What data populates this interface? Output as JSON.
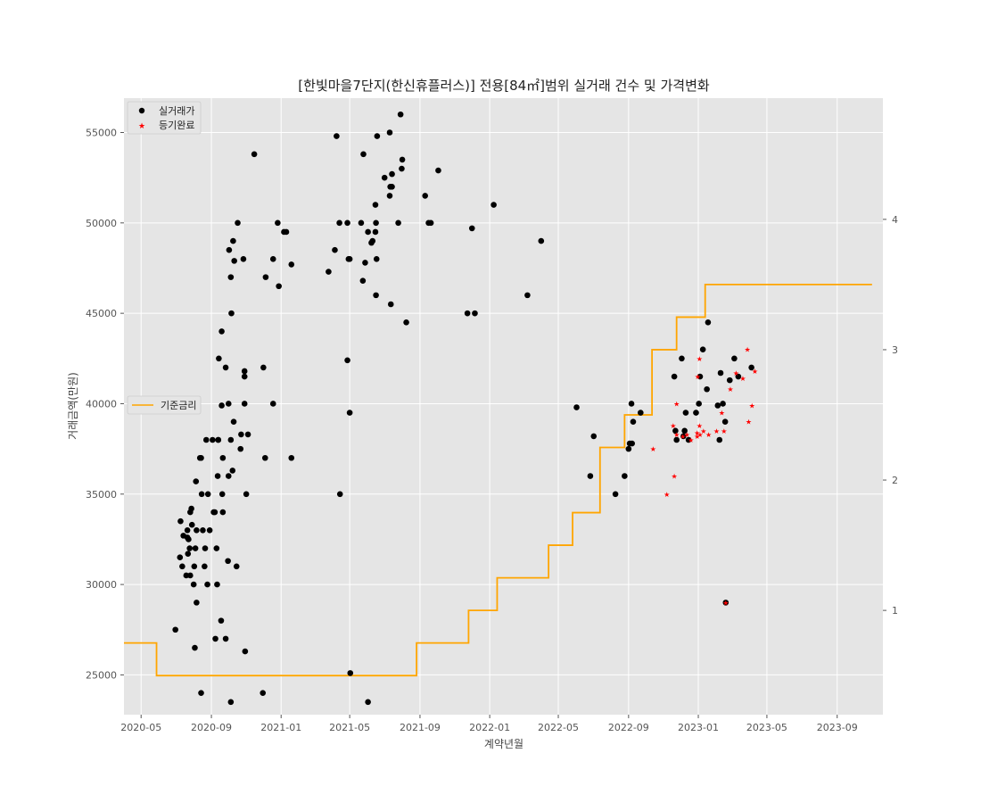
{
  "chart_data": {
    "type": "scatter",
    "title": "[한빛마을7단지(한신휴플러스)] 전용[84㎡]범위 실거래 건수 및 가격변화",
    "xlabel": "계약년월",
    "ylabel": "거래금액(만원)",
    "x_ticks": [
      "2020-05",
      "2020-09",
      "2021-01",
      "2021-05",
      "2021-09",
      "2022-01",
      "2022-05",
      "2022-09",
      "2023-01",
      "2023-05",
      "2023-09"
    ],
    "y_ticks": [
      25000,
      30000,
      35000,
      40000,
      45000,
      50000,
      55000
    ],
    "y2_ticks": [
      1,
      2,
      3,
      4
    ],
    "xlim": [
      "2020-04-01",
      "2023-11-20"
    ],
    "ylim": [
      22800,
      56900
    ],
    "y2lim": [
      0.2,
      4.93
    ],
    "grid": true,
    "colors": {
      "background": "#e5e5e5",
      "trades": "#000000",
      "registered": "#ff0000",
      "rate": "#ffa500",
      "grid": "#ffffff"
    },
    "legend_top": {
      "position": "top-left",
      "items": [
        {
          "label": "실거래가",
          "marker": "circle"
        },
        {
          "label": "등기완료",
          "marker": "star"
        }
      ]
    },
    "legend_mid": {
      "position": "middle-left",
      "items": [
        {
          "label": "기준금리",
          "marker": "line"
        }
      ]
    },
    "series": [
      {
        "name": "실거래가",
        "marker": "circle",
        "points": [
          [
            "2020-06-30",
            27500
          ],
          [
            "2020-07-09",
            33500
          ],
          [
            "2020-07-08",
            31500
          ],
          [
            "2020-07-14",
            32700
          ],
          [
            "2020-07-12",
            31000
          ],
          [
            "2020-07-21",
            32600
          ],
          [
            "2020-07-19",
            30500
          ],
          [
            "2020-07-21",
            33000
          ],
          [
            "2020-07-22",
            31700
          ],
          [
            "2020-07-23",
            32500
          ],
          [
            "2020-07-26",
            30500
          ],
          [
            "2020-07-25",
            32000
          ],
          [
            "2020-07-26",
            34000
          ],
          [
            "2020-07-28",
            34200
          ],
          [
            "2020-07-29",
            33300
          ],
          [
            "2020-08-01",
            30000
          ],
          [
            "2020-08-02",
            31000
          ],
          [
            "2020-08-03",
            26500
          ],
          [
            "2020-08-04",
            32000
          ],
          [
            "2020-08-05",
            35700
          ],
          [
            "2020-08-06",
            33000
          ],
          [
            "2020-08-06",
            29000
          ],
          [
            "2020-08-12",
            37000
          ],
          [
            "2020-08-14",
            37000
          ],
          [
            "2020-08-14",
            24000
          ],
          [
            "2020-08-15",
            35000
          ],
          [
            "2020-08-17",
            33000
          ],
          [
            "2020-08-20",
            31000
          ],
          [
            "2020-08-21",
            32000
          ],
          [
            "2020-08-23",
            38000
          ],
          [
            "2020-08-25",
            30000
          ],
          [
            "2020-08-26",
            35000
          ],
          [
            "2020-08-29",
            33000
          ],
          [
            "2020-09-03",
            38000
          ],
          [
            "2020-09-05",
            34000
          ],
          [
            "2020-09-07",
            34000
          ],
          [
            "2020-09-08",
            27000
          ],
          [
            "2020-09-10",
            32000
          ],
          [
            "2020-09-11",
            30000
          ],
          [
            "2020-09-12",
            36000
          ],
          [
            "2020-09-13",
            38000
          ],
          [
            "2020-09-13",
            38000
          ],
          [
            "2020-09-14",
            42500
          ],
          [
            "2020-09-18",
            28000
          ],
          [
            "2020-09-19",
            44000
          ],
          [
            "2020-09-19",
            39900
          ],
          [
            "2020-09-21",
            37000
          ],
          [
            "2020-09-20",
            35000
          ],
          [
            "2020-09-21",
            34000
          ],
          [
            "2020-09-26",
            42000
          ],
          [
            "2020-09-26",
            27000
          ],
          [
            "2020-09-30",
            31300
          ],
          [
            "2020-10-01",
            36000
          ],
          [
            "2020-10-01",
            40000
          ],
          [
            "2020-10-02",
            48500
          ],
          [
            "2020-10-05",
            23500
          ],
          [
            "2020-10-05",
            38000
          ],
          [
            "2020-10-05",
            47000
          ],
          [
            "2020-10-06",
            45000
          ],
          [
            "2020-10-08",
            36300
          ],
          [
            "2020-10-09",
            49000
          ],
          [
            "2020-10-10",
            39000
          ],
          [
            "2020-10-11",
            47900
          ],
          [
            "2020-10-15",
            31000
          ],
          [
            "2020-10-17",
            50000
          ],
          [
            "2020-10-22",
            37500
          ],
          [
            "2020-10-23",
            38300
          ],
          [
            "2020-10-27",
            48000
          ],
          [
            "2020-10-29",
            40000
          ],
          [
            "2020-10-29",
            41500
          ],
          [
            "2020-10-29",
            41800
          ],
          [
            "2020-10-30",
            26300
          ],
          [
            "2020-11-01",
            35000
          ],
          [
            "2020-11-04",
            38300
          ],
          [
            "2020-11-15",
            53800
          ],
          [
            "2020-11-30",
            24000
          ],
          [
            "2020-12-01",
            42000
          ],
          [
            "2020-12-04",
            37000
          ],
          [
            "2020-12-05",
            47000
          ],
          [
            "2020-12-18",
            40000
          ],
          [
            "2020-12-18",
            48000
          ],
          [
            "2020-12-26",
            50000
          ],
          [
            "2020-12-28",
            46500
          ],
          [
            "2021-01-06",
            49500
          ],
          [
            "2021-01-10",
            49500
          ],
          [
            "2021-01-19",
            37000
          ],
          [
            "2021-01-19",
            47700
          ],
          [
            "2021-03-25",
            47300
          ],
          [
            "2021-04-05",
            48500
          ],
          [
            "2021-04-08",
            54800
          ],
          [
            "2021-04-13",
            50000
          ],
          [
            "2021-04-14",
            35000
          ],
          [
            "2021-04-27",
            50000
          ],
          [
            "2021-04-27",
            42400
          ],
          [
            "2021-04-29",
            48000
          ],
          [
            "2021-05-01",
            48000
          ],
          [
            "2021-05-01",
            39500
          ],
          [
            "2021-05-02",
            25100
          ],
          [
            "2021-05-21",
            50000
          ],
          [
            "2021-05-24",
            46800
          ],
          [
            "2021-05-25",
            53800
          ],
          [
            "2021-05-28",
            47800
          ],
          [
            "2021-06-02",
            23500
          ],
          [
            "2021-06-02",
            49500
          ],
          [
            "2021-06-08",
            48900
          ],
          [
            "2021-06-10",
            49000
          ],
          [
            "2021-06-15",
            51000
          ],
          [
            "2021-06-15",
            49500
          ],
          [
            "2021-06-16",
            46000
          ],
          [
            "2021-06-16",
            50000
          ],
          [
            "2021-06-17",
            48000
          ],
          [
            "2021-06-18",
            54800
          ],
          [
            "2021-07-01",
            52500
          ],
          [
            "2021-07-10",
            51500
          ],
          [
            "2021-07-10",
            55000
          ],
          [
            "2021-07-11",
            52000
          ],
          [
            "2021-07-12",
            45500
          ],
          [
            "2021-07-14",
            52000
          ],
          [
            "2021-07-14",
            52700
          ],
          [
            "2021-07-25",
            50000
          ],
          [
            "2021-07-29",
            56000
          ],
          [
            "2021-07-31",
            53000
          ],
          [
            "2021-08-01",
            53500
          ],
          [
            "2021-08-08",
            44500
          ],
          [
            "2021-09-10",
            51500
          ],
          [
            "2021-09-16",
            50000
          ],
          [
            "2021-09-20",
            50000
          ],
          [
            "2021-10-03",
            52900
          ],
          [
            "2021-11-23",
            45000
          ],
          [
            "2021-12-01",
            49700
          ],
          [
            "2021-12-06",
            45000
          ],
          [
            "2022-01-08",
            51000
          ],
          [
            "2022-03-08",
            46000
          ],
          [
            "2022-04-01",
            49000
          ],
          [
            "2022-06-02",
            39800
          ],
          [
            "2022-06-26",
            36000
          ],
          [
            "2022-07-02",
            38200
          ],
          [
            "2022-08-09",
            35000
          ],
          [
            "2022-08-25",
            36000
          ],
          [
            "2022-09-01",
            37500
          ],
          [
            "2022-09-03",
            37800
          ],
          [
            "2022-09-06",
            40000
          ],
          [
            "2022-09-07",
            37800
          ],
          [
            "2022-09-09",
            39000
          ],
          [
            "2022-09-22",
            39500
          ],
          [
            "2022-11-20",
            41500
          ],
          [
            "2022-11-22",
            38500
          ],
          [
            "2022-11-24",
            38000
          ],
          [
            "2022-12-03",
            42500
          ],
          [
            "2022-12-06",
            38200
          ],
          [
            "2022-12-08",
            38500
          ],
          [
            "2022-12-10",
            39500
          ],
          [
            "2022-12-15",
            38000
          ],
          [
            "2022-12-28",
            39500
          ],
          [
            "2023-01-02",
            40000
          ],
          [
            "2023-01-04",
            41500
          ],
          [
            "2023-01-09",
            43000
          ],
          [
            "2023-01-16",
            40800
          ],
          [
            "2023-01-18",
            44500
          ],
          [
            "2023-02-04",
            39900
          ],
          [
            "2023-02-07",
            38000
          ],
          [
            "2023-02-09",
            41700
          ],
          [
            "2023-02-13",
            40000
          ],
          [
            "2023-02-18",
            29000
          ],
          [
            "2023-02-17",
            39000
          ],
          [
            "2023-02-25",
            41300
          ],
          [
            "2023-03-05",
            42500
          ],
          [
            "2023-03-12",
            41500
          ],
          [
            "2023-04-04",
            42000
          ]
        ]
      },
      {
        "name": "등기완료",
        "marker": "star",
        "points": [
          [
            "2022-10-14",
            37500
          ],
          [
            "2022-11-07",
            35000
          ],
          [
            "2022-11-18",
            38800
          ],
          [
            "2022-11-20",
            36000
          ],
          [
            "2022-11-24",
            40000
          ],
          [
            "2022-11-24",
            38300
          ],
          [
            "2022-12-05",
            38200
          ],
          [
            "2022-12-12",
            38300
          ],
          [
            "2022-12-19",
            38000
          ],
          [
            "2022-12-30",
            38400
          ],
          [
            "2022-12-30",
            38200
          ],
          [
            "2022-12-31",
            41500
          ],
          [
            "2023-01-03",
            38800
          ],
          [
            "2023-01-03",
            42500
          ],
          [
            "2023-01-04",
            38300
          ],
          [
            "2023-01-10",
            38500
          ],
          [
            "2023-01-19",
            38300
          ],
          [
            "2023-02-02",
            38500
          ],
          [
            "2023-02-11",
            39500
          ],
          [
            "2023-02-15",
            38500
          ],
          [
            "2023-02-26",
            40800
          ],
          [
            "2023-02-18",
            29000
          ],
          [
            "2023-03-08",
            41700
          ],
          [
            "2023-03-20",
            41400
          ],
          [
            "2023-03-28",
            43000
          ],
          [
            "2023-03-30",
            39000
          ],
          [
            "2023-04-05",
            39900
          ],
          [
            "2023-04-10",
            41800
          ]
        ]
      },
      {
        "name": "기준금리",
        "axis": "right",
        "type": "step",
        "points": [
          [
            "2020-04-01",
            0.75
          ],
          [
            "2020-05-28",
            0.5
          ],
          [
            "2021-08-26",
            0.75
          ],
          [
            "2021-11-25",
            1.0
          ],
          [
            "2022-01-14",
            1.25
          ],
          [
            "2022-04-14",
            1.5
          ],
          [
            "2022-05-26",
            1.75
          ],
          [
            "2022-07-13",
            2.25
          ],
          [
            "2022-08-25",
            2.5
          ],
          [
            "2022-10-12",
            3.0
          ],
          [
            "2022-11-24",
            3.25
          ],
          [
            "2023-01-13",
            3.5
          ],
          [
            "2023-11-01",
            3.5
          ]
        ]
      }
    ]
  }
}
